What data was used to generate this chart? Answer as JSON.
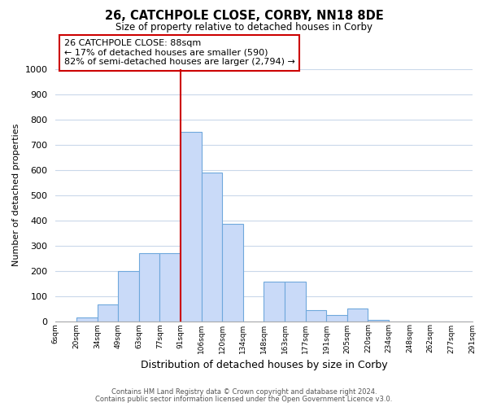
{
  "title": "26, CATCHPOLE CLOSE, CORBY, NN18 8DE",
  "subtitle": "Size of property relative to detached houses in Corby",
  "xlabel": "Distribution of detached houses by size in Corby",
  "ylabel": "Number of detached properties",
  "bar_color": "#c9daf8",
  "bar_edge_color": "#6fa8dc",
  "grid_color": "#c9d8ea",
  "background_color": "#ffffff",
  "vline_color": "#cc0000",
  "ann_edge_color": "#cc0000",
  "vline_tick_index": 6,
  "tick_labels": [
    "6sqm",
    "20sqm",
    "34sqm",
    "49sqm",
    "63sqm",
    "77sqm",
    "91sqm",
    "106sqm",
    "120sqm",
    "134sqm",
    "148sqm",
    "163sqm",
    "177sqm",
    "191sqm",
    "205sqm",
    "220sqm",
    "234sqm",
    "248sqm",
    "262sqm",
    "277sqm",
    "291sqm"
  ],
  "counts": [
    0,
    15,
    65,
    200,
    270,
    270,
    750,
    590,
    385,
    0,
    155,
    155,
    45,
    25,
    50,
    5,
    0,
    0,
    0,
    0
  ],
  "ylim": [
    0,
    1000
  ],
  "yticks": [
    0,
    100,
    200,
    300,
    400,
    500,
    600,
    700,
    800,
    900,
    1000
  ],
  "annotation_line1": "26 CATCHPOLE CLOSE: 88sqm",
  "annotation_line2": "← 17% of detached houses are smaller (590)",
  "annotation_line3": "82% of semi-detached houses are larger (2,794) →",
  "footer1": "Contains HM Land Registry data © Crown copyright and database right 2024.",
  "footer2": "Contains public sector information licensed under the Open Government Licence v3.0."
}
